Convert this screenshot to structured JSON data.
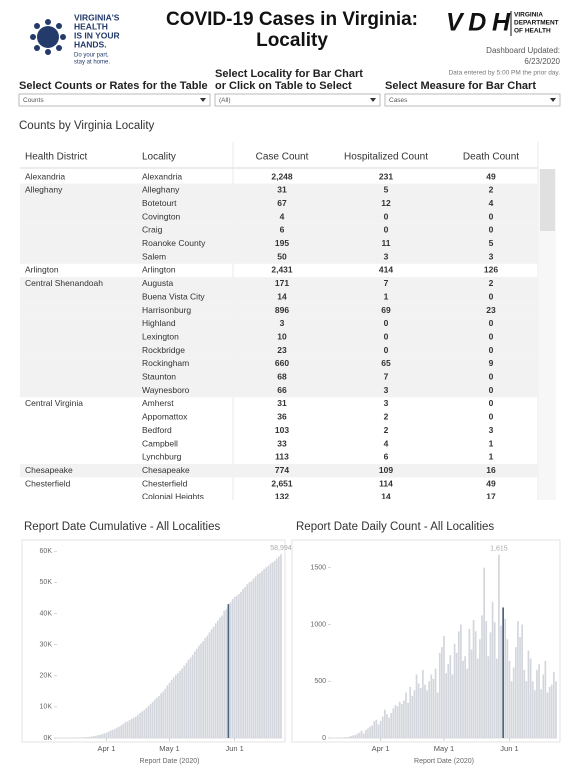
{
  "header": {
    "logo_lines": [
      "VIRGINIA'S",
      "HEALTH",
      "IS IN YOUR",
      "HANDS."
    ],
    "logo_tagline": [
      "Do your part,",
      "stay at home."
    ],
    "title_lines": [
      "COVID-19 Cases in Virginia:",
      "Locality"
    ],
    "agency_logo": "VDH",
    "agency_name": [
      "VIRGINIA",
      "DEPARTMENT",
      "OF HEALTH"
    ],
    "updated_label": "Dashboard Updated:",
    "updated_date": "6/23/2020",
    "data_note": "Data entered by 5:00 PM the prior day."
  },
  "filters": [
    {
      "label_lines": [
        "Select Counts or Rates for the Table"
      ],
      "value": "Counts"
    },
    {
      "label_lines": [
        "Select Locality for Bar Chart",
        "or Click on Table to Select"
      ],
      "value": "(All)"
    },
    {
      "label_lines": [
        "Select Measure for Bar Chart"
      ],
      "value": "Cases"
    }
  ],
  "table": {
    "title": "Counts by Virginia Locality",
    "columns": [
      "Health District",
      "Locality",
      "Case Count",
      "Hospitalized Count",
      "Death Count"
    ],
    "rows": [
      [
        "Alexandria",
        "Alexandria",
        "2,248",
        "231",
        "49"
      ],
      [
        "Alleghany",
        "Alleghany",
        "31",
        "5",
        "2"
      ],
      [
        null,
        "Botetourt",
        "67",
        "12",
        "4"
      ],
      [
        null,
        "Covington",
        "4",
        "0",
        "0"
      ],
      [
        null,
        "Craig",
        "6",
        "0",
        "0"
      ],
      [
        null,
        "Roanoke County",
        "195",
        "11",
        "5"
      ],
      [
        null,
        "Salem",
        "50",
        "3",
        "3"
      ],
      [
        "Arlington",
        "Arlington",
        "2,431",
        "414",
        "126"
      ],
      [
        "Central Shenandoah",
        "Augusta",
        "171",
        "7",
        "2"
      ],
      [
        null,
        "Buena Vista City",
        "14",
        "1",
        "0"
      ],
      [
        null,
        "Harrisonburg",
        "896",
        "69",
        "23"
      ],
      [
        null,
        "Highland",
        "3",
        "0",
        "0"
      ],
      [
        null,
        "Lexington",
        "10",
        "0",
        "0"
      ],
      [
        null,
        "Rockbridge",
        "23",
        "0",
        "0"
      ],
      [
        null,
        "Rockingham",
        "660",
        "65",
        "9"
      ],
      [
        null,
        "Staunton",
        "68",
        "7",
        "0"
      ],
      [
        null,
        "Waynesboro",
        "66",
        "3",
        "0"
      ],
      [
        "Central Virginia",
        "Amherst",
        "31",
        "3",
        "0"
      ],
      [
        null,
        "Appomattox",
        "36",
        "2",
        "0"
      ],
      [
        null,
        "Bedford",
        "103",
        "2",
        "3"
      ],
      [
        null,
        "Campbell",
        "33",
        "4",
        "1"
      ],
      [
        null,
        "Lynchburg",
        "113",
        "6",
        "1"
      ],
      [
        "Chesapeake",
        "Chesapeake",
        "774",
        "109",
        "16"
      ],
      [
        "Chesterfield",
        "Chesterfield",
        "2,651",
        "114",
        "49"
      ],
      [
        null,
        "Colonial Heights",
        "132",
        "14",
        "17"
      ]
    ]
  },
  "chart_data": [
    {
      "type": "bar",
      "title": "Report Date Cumulative - All Localities",
      "x_label": "Report Date (2020)",
      "color": "#d3d6dc",
      "highlight_color": "#4e6180",
      "highlight_index": 81,
      "ylim": [
        0,
        62000
      ],
      "yticks": [
        {
          "value": 0,
          "label": "0K"
        },
        {
          "value": 10000,
          "label": "10K"
        },
        {
          "value": 20000,
          "label": "20K"
        },
        {
          "value": 30000,
          "label": "30K"
        },
        {
          "value": 40000,
          "label": "40K"
        },
        {
          "value": 50000,
          "label": "50K"
        },
        {
          "value": 60000,
          "label": "60K"
        }
      ],
      "categories": [
        null,
        null,
        null,
        null,
        null,
        null,
        null,
        null,
        null,
        null,
        null,
        null,
        null,
        null,
        null,
        null,
        null,
        null,
        null,
        null,
        null,
        null,
        null,
        "Apr 1",
        null,
        null,
        null,
        null,
        null,
        null,
        null,
        null,
        null,
        null,
        null,
        null,
        null,
        null,
        null,
        null,
        null,
        null,
        null,
        null,
        null,
        null,
        null,
        null,
        null,
        null,
        null,
        null,
        null,
        "May 1",
        null,
        null,
        null,
        null,
        null,
        null,
        null,
        null,
        null,
        null,
        null,
        null,
        null,
        null,
        null,
        null,
        null,
        null,
        null,
        null,
        null,
        null,
        null,
        null,
        null,
        null,
        null,
        null,
        null,
        null,
        "Jun 1",
        null,
        null,
        null,
        null,
        null,
        null,
        null,
        null,
        null,
        null,
        null,
        null,
        null,
        null,
        null,
        null,
        null,
        null,
        null,
        null,
        null,
        null
      ],
      "values": [
        2,
        3,
        5,
        8,
        12,
        20,
        30,
        45,
        67,
        100,
        120,
        150,
        220,
        260,
        290,
        390,
        460,
        600,
        740,
        890,
        1020,
        1250,
        1480,
        1700,
        2000,
        2400,
        2640,
        2880,
        3330,
        3650,
        4040,
        4510,
        5080,
        5270,
        5750,
        6170,
        6500,
        6890,
        7490,
        8050,
        8540,
        8990,
        9630,
        10270,
        10990,
        11590,
        12370,
        12970,
        13540,
        14340,
        14960,
        15850,
        16900,
        17730,
        18670,
        19490,
        20260,
        20880,
        21570,
        22340,
        23200,
        24080,
        25070,
        25800,
        26750,
        27810,
        28670,
        29680,
        30390,
        31140,
        32140,
        32910,
        33910,
        34950,
        35750,
        36850,
        37730,
        38670,
        39340,
        40850,
        41400,
        43000,
        43610,
        44600,
        45300,
        45700,
        46240,
        46900,
        47860,
        48540,
        49400,
        50000,
        50400,
        51250,
        51900,
        52650,
        53000,
        53600,
        54350,
        54830,
        55300,
        56020,
        56380,
        56890,
        57600,
        58300,
        58994
      ],
      "value_labels": [
        null,
        null,
        null,
        null,
        null,
        null,
        null,
        null,
        null,
        null,
        null,
        null,
        null,
        null,
        null,
        null,
        null,
        null,
        null,
        null,
        null,
        null,
        null,
        null,
        null,
        null,
        null,
        null,
        null,
        null,
        null,
        null,
        null,
        null,
        null,
        null,
        null,
        null,
        null,
        null,
        null,
        null,
        null,
        null,
        null,
        null,
        null,
        null,
        null,
        null,
        null,
        null,
        null,
        null,
        null,
        null,
        null,
        null,
        null,
        null,
        null,
        null,
        null,
        null,
        null,
        null,
        null,
        null,
        null,
        null,
        null,
        null,
        null,
        null,
        null,
        null,
        null,
        null,
        null,
        null,
        null,
        null,
        null,
        null,
        null,
        null,
        null,
        null,
        null,
        null,
        null,
        null,
        null,
        null,
        null,
        null,
        null,
        null,
        null,
        null,
        null,
        null,
        null,
        null,
        null,
        null,
        "58,994"
      ]
    },
    {
      "type": "bar",
      "title": "Report Date Daily Count - All Localities",
      "x_label": "Report Date (2020)",
      "color": "#d3d6dc",
      "highlight_color": "#4e6180",
      "highlight_index": 81,
      "ylim": [
        0,
        1700
      ],
      "yticks": [
        0,
        500,
        1000,
        1500
      ],
      "categories": [
        null,
        null,
        null,
        null,
        null,
        null,
        null,
        null,
        null,
        null,
        null,
        null,
        null,
        null,
        null,
        null,
        null,
        null,
        null,
        null,
        null,
        null,
        null,
        "Apr 1",
        null,
        null,
        null,
        null,
        null,
        null,
        null,
        null,
        null,
        null,
        null,
        null,
        null,
        null,
        null,
        null,
        null,
        null,
        null,
        null,
        null,
        null,
        null,
        null,
        null,
        null,
        null,
        null,
        null,
        "May 1",
        null,
        null,
        null,
        null,
        null,
        null,
        null,
        null,
        null,
        null,
        null,
        null,
        null,
        null,
        null,
        null,
        null,
        null,
        null,
        null,
        null,
        null,
        null,
        null,
        null,
        null,
        null,
        null,
        null,
        null,
        "Jun 1",
        null,
        null,
        null,
        null,
        null,
        null,
        null,
        null,
        null,
        null,
        null,
        null,
        null,
        null,
        null,
        null,
        null,
        null,
        null,
        null,
        null,
        null
      ],
      "values": [
        0,
        0,
        1,
        2,
        3,
        5,
        8,
        6,
        10,
        17,
        22,
        26,
        38,
        48,
        65,
        40,
        70,
        85,
        100,
        110,
        150,
        160,
        120,
        150,
        190,
        250,
        210,
        180,
        220,
        260,
        290,
        280,
        320,
        300,
        330,
        400,
        310,
        450,
        370,
        420,
        560,
        480,
        440,
        600,
        470,
        420,
        500,
        560,
        520,
        610,
        400,
        750,
        800,
        900,
        570,
        650,
        730,
        560,
        830,
        750,
        940,
        1000,
        680,
        720,
        610,
        960,
        780,
        1040,
        940,
        700,
        870,
        1080,
        1500,
        1030,
        720,
        930,
        1200,
        1020,
        700,
        1615,
        990,
        1150,
        1050,
        870,
        680,
        500,
        620,
        800,
        1030,
        890,
        1000,
        600,
        500,
        770,
        700,
        500,
        420,
        600,
        650,
        430,
        560,
        680,
        400,
        450,
        470,
        580,
        500
      ],
      "value_labels": [
        null,
        null,
        null,
        null,
        null,
        null,
        null,
        null,
        null,
        null,
        null,
        null,
        null,
        null,
        null,
        null,
        null,
        null,
        null,
        null,
        null,
        null,
        null,
        null,
        null,
        null,
        null,
        null,
        null,
        null,
        null,
        null,
        null,
        null,
        null,
        null,
        null,
        null,
        null,
        null,
        null,
        null,
        null,
        null,
        null,
        null,
        null,
        null,
        null,
        null,
        null,
        null,
        null,
        null,
        null,
        null,
        null,
        null,
        null,
        null,
        null,
        null,
        null,
        null,
        null,
        null,
        null,
        null,
        null,
        null,
        null,
        null,
        null,
        null,
        null,
        null,
        null,
        null,
        null,
        "1,615",
        null,
        null,
        null,
        null,
        null,
        null,
        null,
        null,
        null,
        null,
        null,
        null,
        null,
        null,
        null,
        null,
        null,
        null,
        null,
        null,
        null,
        null,
        null,
        null,
        null,
        null,
        null
      ]
    }
  ]
}
